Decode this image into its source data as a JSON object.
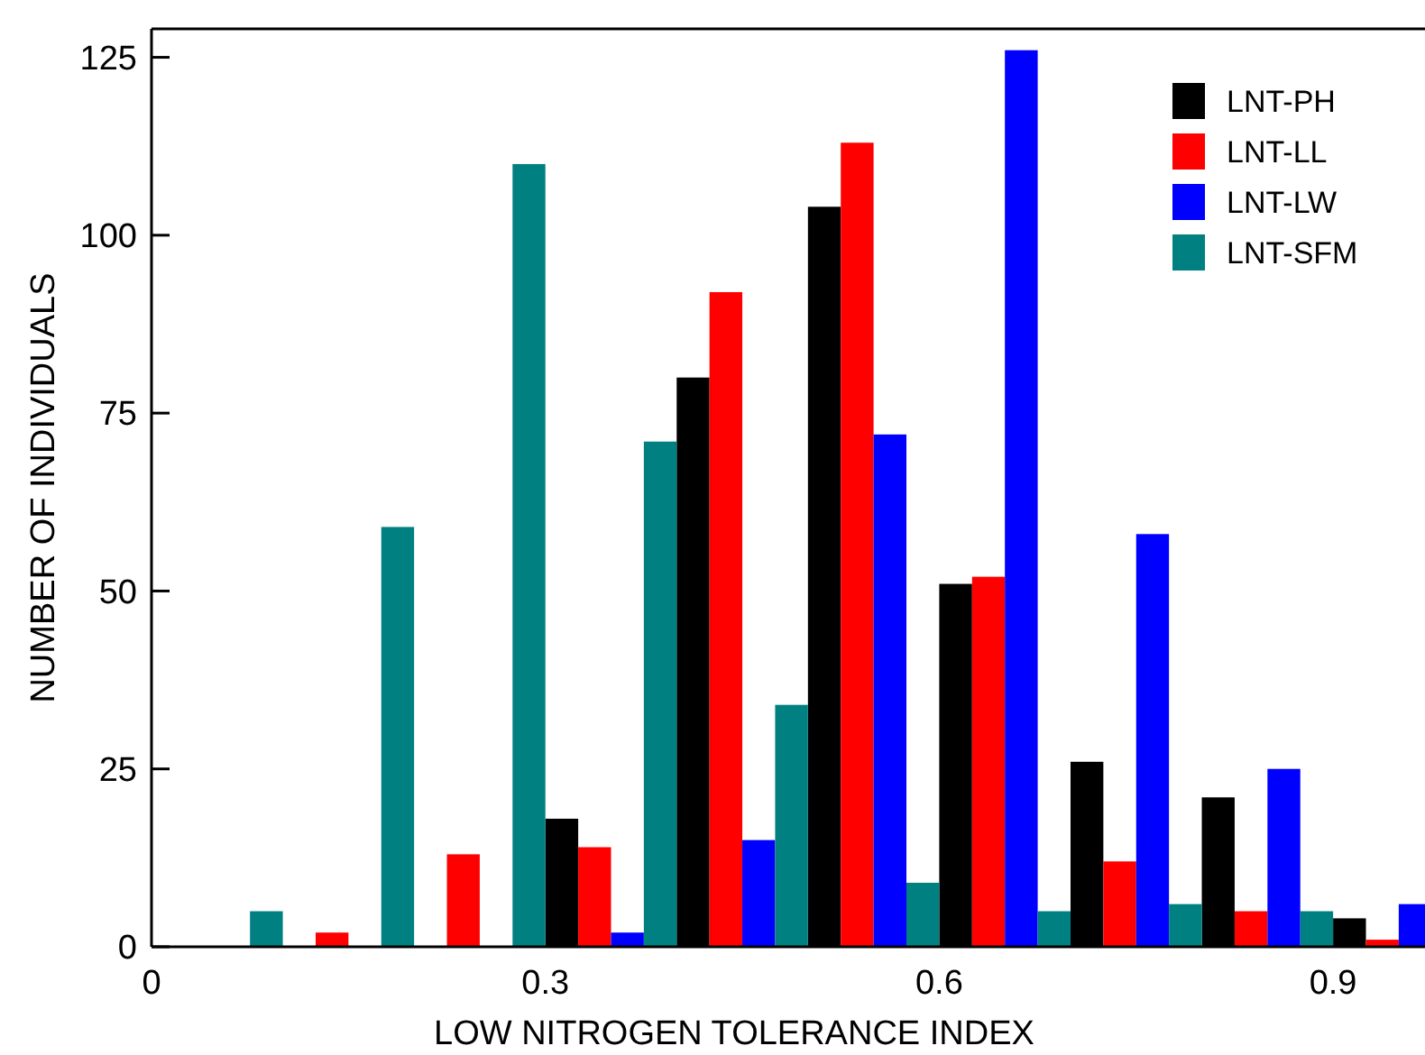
{
  "chart_data": {
    "type": "bar",
    "xlabel": "LOW NITROGEN TOLERANCE INDEX",
    "ylabel": "NUMBER OF INDIVIDUALS",
    "x": [
      0.05,
      0.15,
      0.25,
      0.35,
      0.45,
      0.55,
      0.65,
      0.75,
      0.85,
      0.95
    ],
    "series": [
      {
        "name": "LNT-PH",
        "color": "#000000",
        "values": [
          0,
          0,
          0,
          18,
          80,
          104,
          51,
          26,
          21,
          4
        ]
      },
      {
        "name": "LNT-LL",
        "color": "#ff0000",
        "values": [
          0,
          2,
          13,
          14,
          92,
          113,
          52,
          12,
          5,
          1
        ]
      },
      {
        "name": "LNT-LW",
        "color": "#0000ff",
        "values": [
          0,
          0,
          0,
          2,
          15,
          72,
          126,
          58,
          25,
          6
        ]
      },
      {
        "name": "LNT-SFM",
        "color": "#008080",
        "values": [
          5,
          59,
          110,
          71,
          34,
          9,
          5,
          6,
          5,
          null
        ]
      }
    ],
    "xlim": [
      0,
      0.97
    ],
    "xticks": [
      0,
      0.3,
      0.6,
      0.9
    ],
    "ylim": [
      0,
      129
    ],
    "yticks": [
      0,
      25,
      50,
      75,
      100,
      125
    ],
    "legend": "top right"
  }
}
